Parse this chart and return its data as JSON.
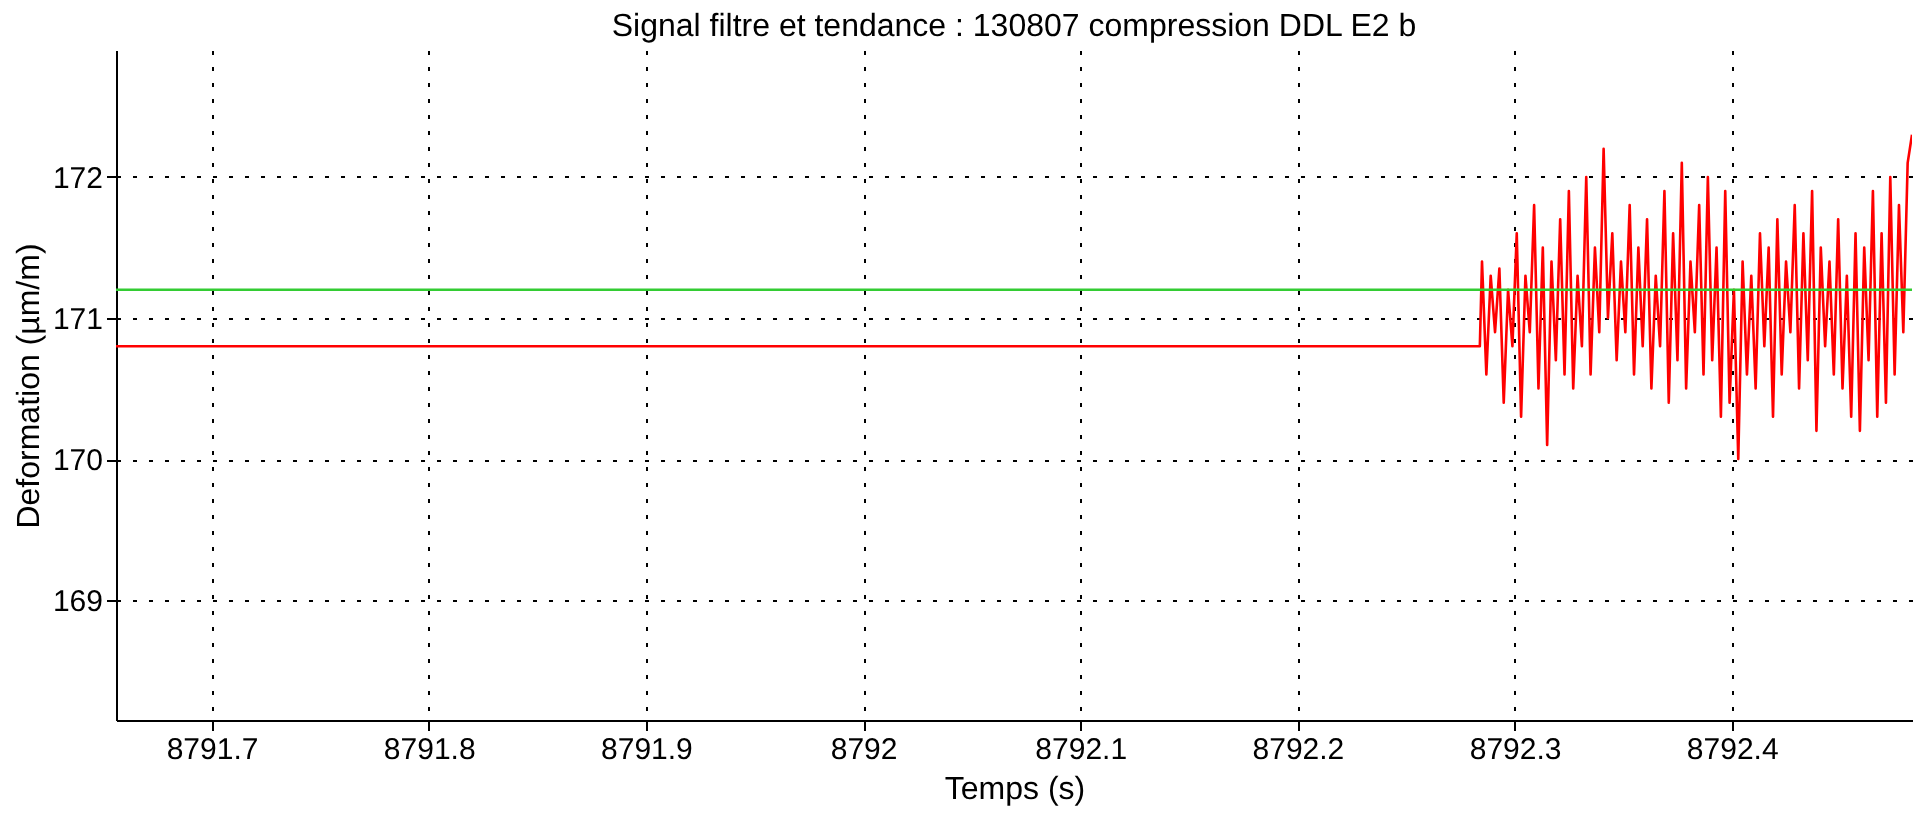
{
  "chart_data": {
    "type": "line",
    "title": "Signal filtre et tendance  : 130807 compression DDL E2 b",
    "xlabel": "Temps (s)",
    "ylabel": "Deformation (µm/m)",
    "xlim": [
      8791.656,
      8792.483
    ],
    "ylim": [
      168.15,
      172.9
    ],
    "xticks": [
      8791.7,
      8791.8,
      8791.9,
      8792,
      8792.1,
      8792.2,
      8792.3,
      8792.4
    ],
    "yticks": [
      169,
      170,
      171,
      172
    ],
    "grid": true,
    "line_style": "solid",
    "marker": "none",
    "series": [
      {
        "color": "#ff0000",
        "x": [
          8791.656,
          8792.284,
          8792.285,
          8792.287,
          8792.289,
          8792.291,
          8792.293,
          8792.295,
          8792.297,
          8792.299,
          8792.301,
          8792.303,
          8792.305,
          8792.307,
          8792.309,
          8792.311,
          8792.313,
          8792.315,
          8792.317,
          8792.319,
          8792.321,
          8792.323,
          8792.325,
          8792.327,
          8792.329,
          8792.331,
          8792.333,
          8792.335,
          8792.337,
          8792.339,
          8792.341,
          8792.343,
          8792.345,
          8792.347,
          8792.349,
          8792.351,
          8792.353,
          8792.355,
          8792.357,
          8792.359,
          8792.361,
          8792.363,
          8792.365,
          8792.367,
          8792.369,
          8792.371,
          8792.373,
          8792.375,
          8792.377,
          8792.379,
          8792.381,
          8792.383,
          8792.385,
          8792.387,
          8792.389,
          8792.391,
          8792.393,
          8792.395,
          8792.397,
          8792.399,
          8792.401,
          8792.403,
          8792.405,
          8792.407,
          8792.409,
          8792.411,
          8792.413,
          8792.415,
          8792.417,
          8792.419,
          8792.421,
          8792.423,
          8792.425,
          8792.427,
          8792.429,
          8792.431,
          8792.433,
          8792.435,
          8792.437,
          8792.439,
          8792.441,
          8792.443,
          8792.445,
          8792.447,
          8792.449,
          8792.451,
          8792.453,
          8792.455,
          8792.457,
          8792.459,
          8792.461,
          8792.463,
          8792.465,
          8792.467,
          8792.469,
          8792.471,
          8792.473,
          8792.475,
          8792.477,
          8792.479,
          8792.481,
          8792.483
        ],
        "values": [
          170.8,
          170.8,
          171.4,
          170.6,
          171.3,
          170.9,
          171.35,
          170.4,
          171.2,
          170.8,
          171.6,
          170.3,
          171.3,
          170.9,
          171.8,
          170.5,
          171.5,
          170.1,
          171.4,
          170.7,
          171.7,
          170.6,
          171.9,
          170.5,
          171.3,
          170.8,
          172.0,
          170.6,
          171.5,
          170.9,
          172.2,
          171.0,
          171.6,
          170.7,
          171.4,
          170.9,
          171.8,
          170.6,
          171.5,
          170.8,
          171.7,
          170.5,
          171.3,
          170.8,
          171.9,
          170.4,
          171.6,
          170.7,
          172.1,
          170.5,
          171.4,
          170.9,
          171.8,
          170.6,
          172.0,
          170.7,
          171.5,
          170.3,
          171.9,
          170.4,
          171.2,
          170.0,
          171.4,
          170.6,
          171.3,
          170.5,
          171.6,
          170.8,
          171.5,
          170.3,
          171.7,
          170.6,
          171.4,
          170.9,
          171.8,
          170.5,
          171.6,
          170.7,
          171.9,
          170.2,
          171.5,
          170.8,
          171.4,
          170.6,
          171.7,
          170.5,
          171.3,
          170.3,
          171.6,
          170.2,
          171.5,
          170.7,
          171.9,
          170.3,
          171.6,
          170.4,
          172.0,
          170.6,
          171.8,
          170.9,
          172.1,
          172.3
        ]
      },
      {
        "color": "#33cc33",
        "x": [
          8791.656,
          8792.483
        ],
        "values": [
          171.2,
          171.2
        ]
      }
    ]
  }
}
